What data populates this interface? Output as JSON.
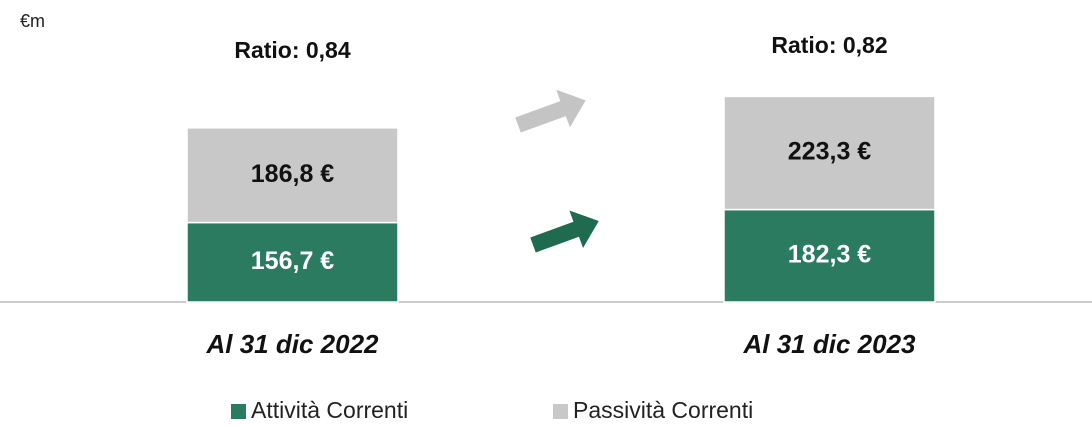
{
  "chart_data": {
    "type": "stacked-bar",
    "unit_label": "€m",
    "categories": [
      "Al 31 dic 2022",
      "Al 31 dic 2023"
    ],
    "annotations": [
      "Ratio: 0,84",
      "Ratio: 0,82"
    ],
    "series": [
      {
        "name": "Attività Correnti",
        "color": "#2a7b5f",
        "values": [
          156.7,
          182.3
        ],
        "value_labels": [
          "156,7 €",
          "182,3 €"
        ]
      },
      {
        "name": "Passività Correnti",
        "color": "#c8c8c8",
        "values": [
          186.8,
          223.3
        ],
        "value_labels": [
          "186,8 €",
          "223,3 €"
        ]
      }
    ],
    "legend": "bottom"
  }
}
